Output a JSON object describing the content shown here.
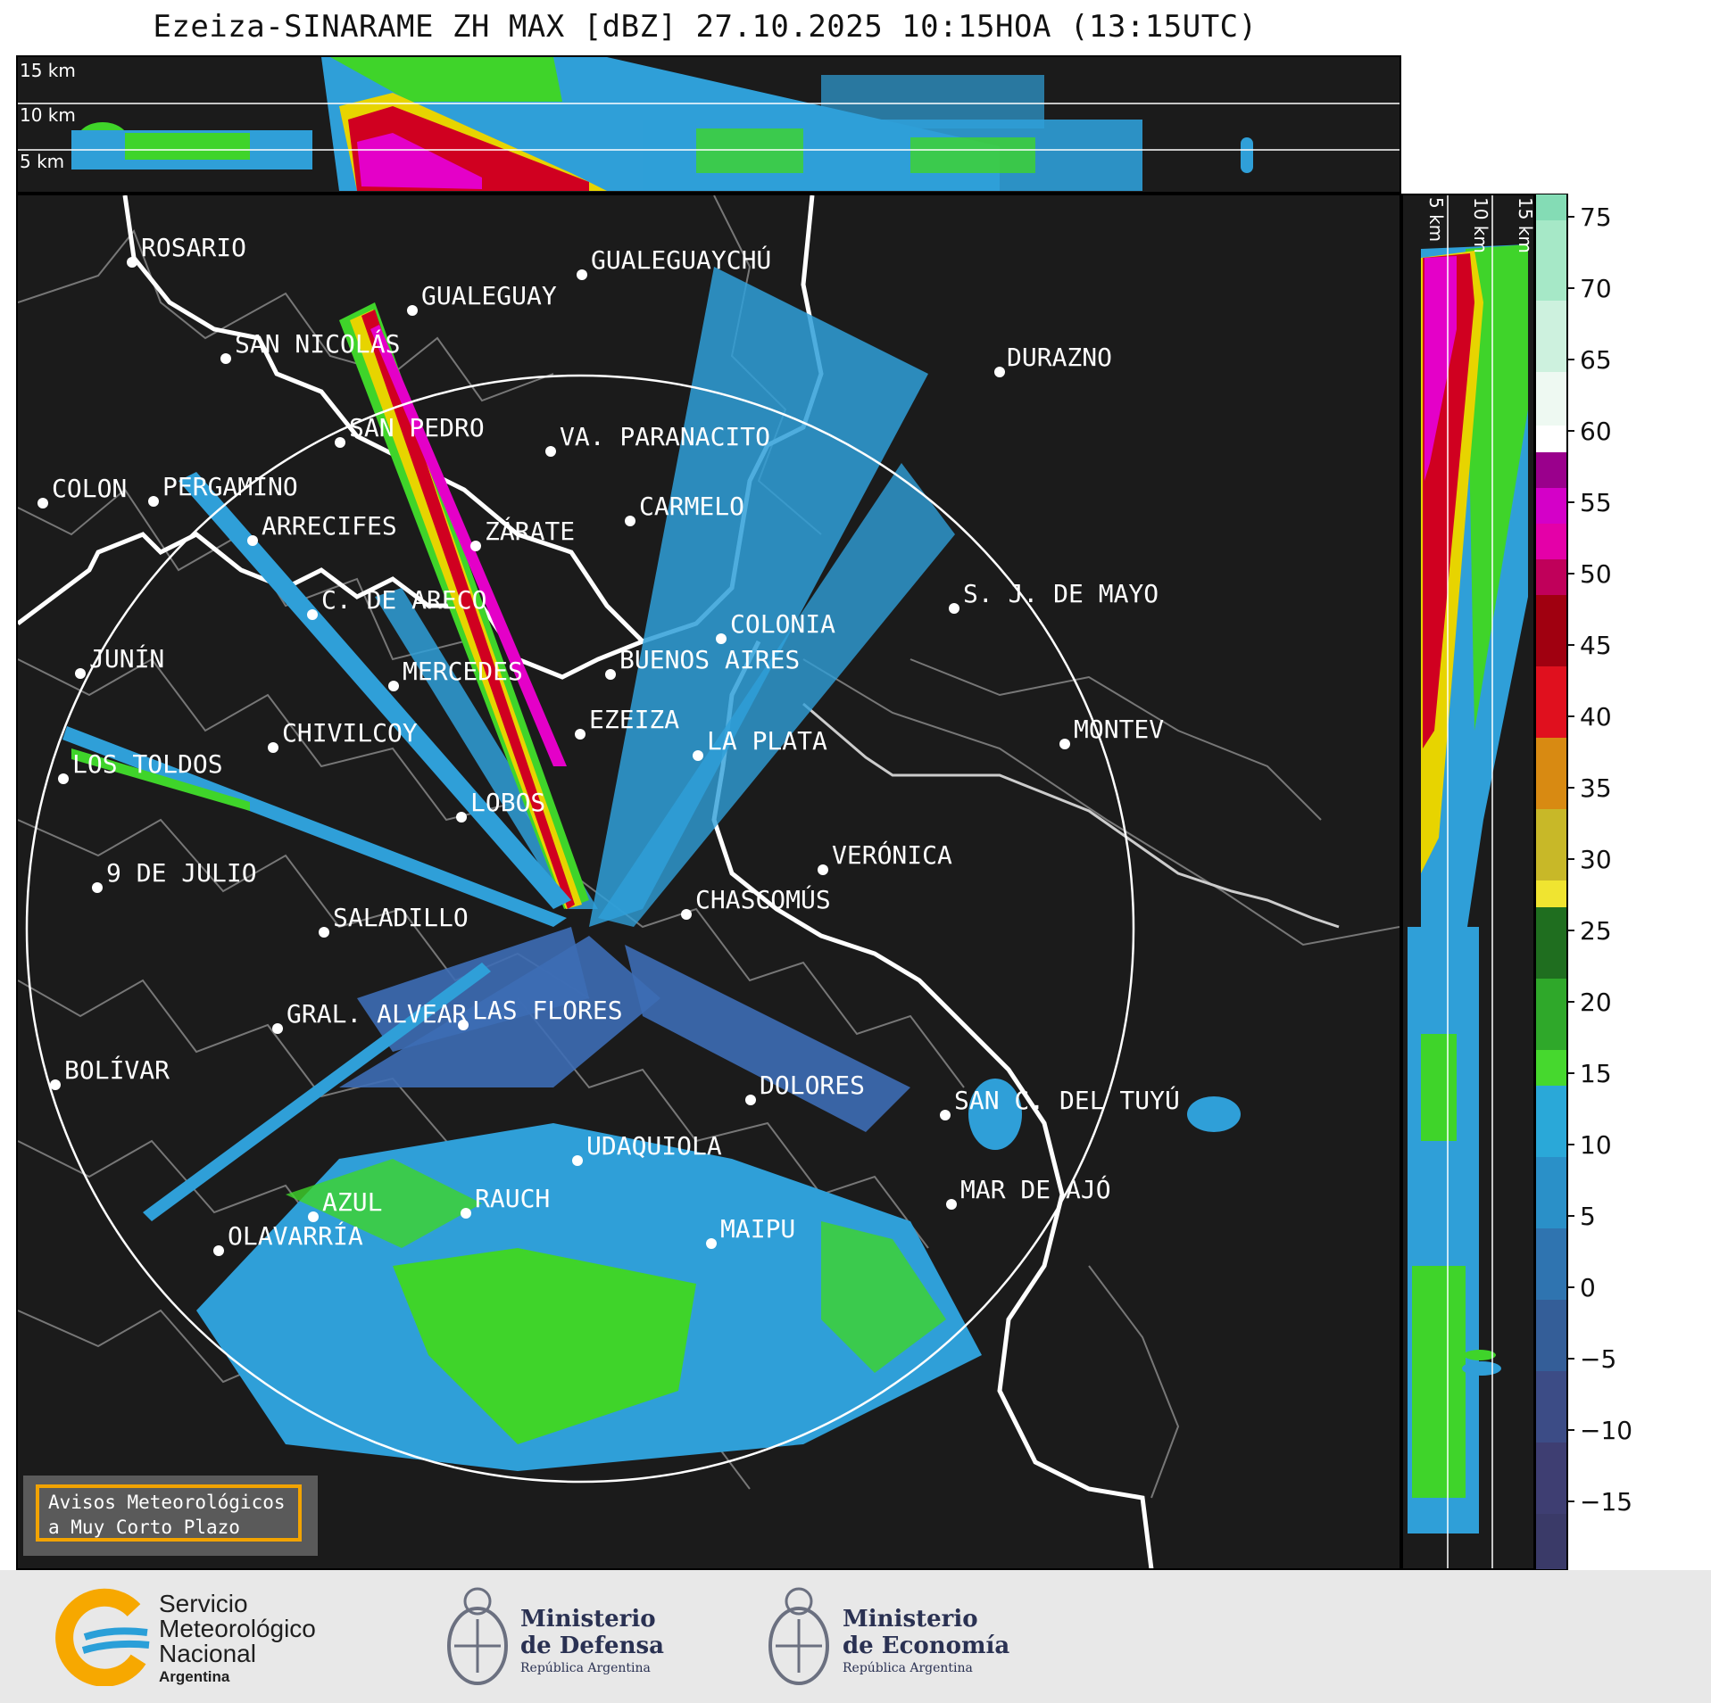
{
  "title": "Ezeiza-SINARAME ZH MAX [dBZ] 27.10.2025 10:15HOA (13:15UTC)",
  "height_labels_top": [
    "15 km",
    "10 km",
    "5 km"
  ],
  "height_labels_side": [
    "5 km",
    "10 km",
    "15 km"
  ],
  "colorbar": {
    "ticks": [
      "75",
      "70",
      "65",
      "60",
      "55",
      "50",
      "45",
      "40",
      "35",
      "30",
      "25",
      "20",
      "15",
      "10",
      "5",
      "0",
      "−5",
      "−10",
      "−15"
    ]
  },
  "cities": [
    {
      "name": "ROSARIO"
    },
    {
      "name": "GUALEGUAYCHÚ"
    },
    {
      "name": "GUALEGUAY"
    },
    {
      "name": "SAN NICOLÁS"
    },
    {
      "name": "DURAZNO"
    },
    {
      "name": "SAN PEDRO"
    },
    {
      "name": "VA. PARANACITO"
    },
    {
      "name": "COLON"
    },
    {
      "name": "PERGAMINO"
    },
    {
      "name": "CARMELO"
    },
    {
      "name": "ARRECIFES"
    },
    {
      "name": "ZÁRATE"
    },
    {
      "name": "C. DE ARECO"
    },
    {
      "name": "S. J. DE MAYO"
    },
    {
      "name": "COLONIA"
    },
    {
      "name": "JUNÍN"
    },
    {
      "name": "BUENOS AIRES"
    },
    {
      "name": "MERCEDES"
    },
    {
      "name": "EZEIZA"
    },
    {
      "name": "MONTEV"
    },
    {
      "name": "CHIVILCOY"
    },
    {
      "name": "LA PLATA"
    },
    {
      "name": "LOS TOLDOS"
    },
    {
      "name": "LOBOS"
    },
    {
      "name": "VERÓNICA"
    },
    {
      "name": "9 DE JULIO"
    },
    {
      "name": "CHASCOMÚS"
    },
    {
      "name": "SALADILLO"
    },
    {
      "name": "GRAL. ALVEAR"
    },
    {
      "name": "LAS FLORES"
    },
    {
      "name": "BOLÍVAR"
    },
    {
      "name": "DOLORES"
    },
    {
      "name": "SAN C. DEL TUYÚ"
    },
    {
      "name": "UDAQUIOLA"
    },
    {
      "name": "MAR DE AJÓ"
    },
    {
      "name": "AZUL"
    },
    {
      "name": "RAUCH"
    },
    {
      "name": "MAIPU"
    },
    {
      "name": "OLAVARRÍA"
    }
  ],
  "aviso": {
    "line1": "Avisos Meteorológicos",
    "line2": "a Muy Corto Plazo"
  },
  "footer": {
    "smn": {
      "line1": "Servicio",
      "line2": "Meteorológico",
      "line3": "Nacional",
      "line4": "Argentina"
    },
    "defensa": {
      "line1": "Ministerio",
      "line2": "de Defensa",
      "line3": "República Argentina"
    },
    "economia": {
      "line1": "Ministerio",
      "line2": "de Economía",
      "line3": "República Argentina"
    }
  },
  "colors": {
    "background": "#1b1b1b",
    "radar_light_blue": "#2f9fd8",
    "radar_green": "#3fd42a",
    "radar_red": "#d00020",
    "radar_magenta": "#e400c8",
    "accent_orange": "#f2a300"
  }
}
